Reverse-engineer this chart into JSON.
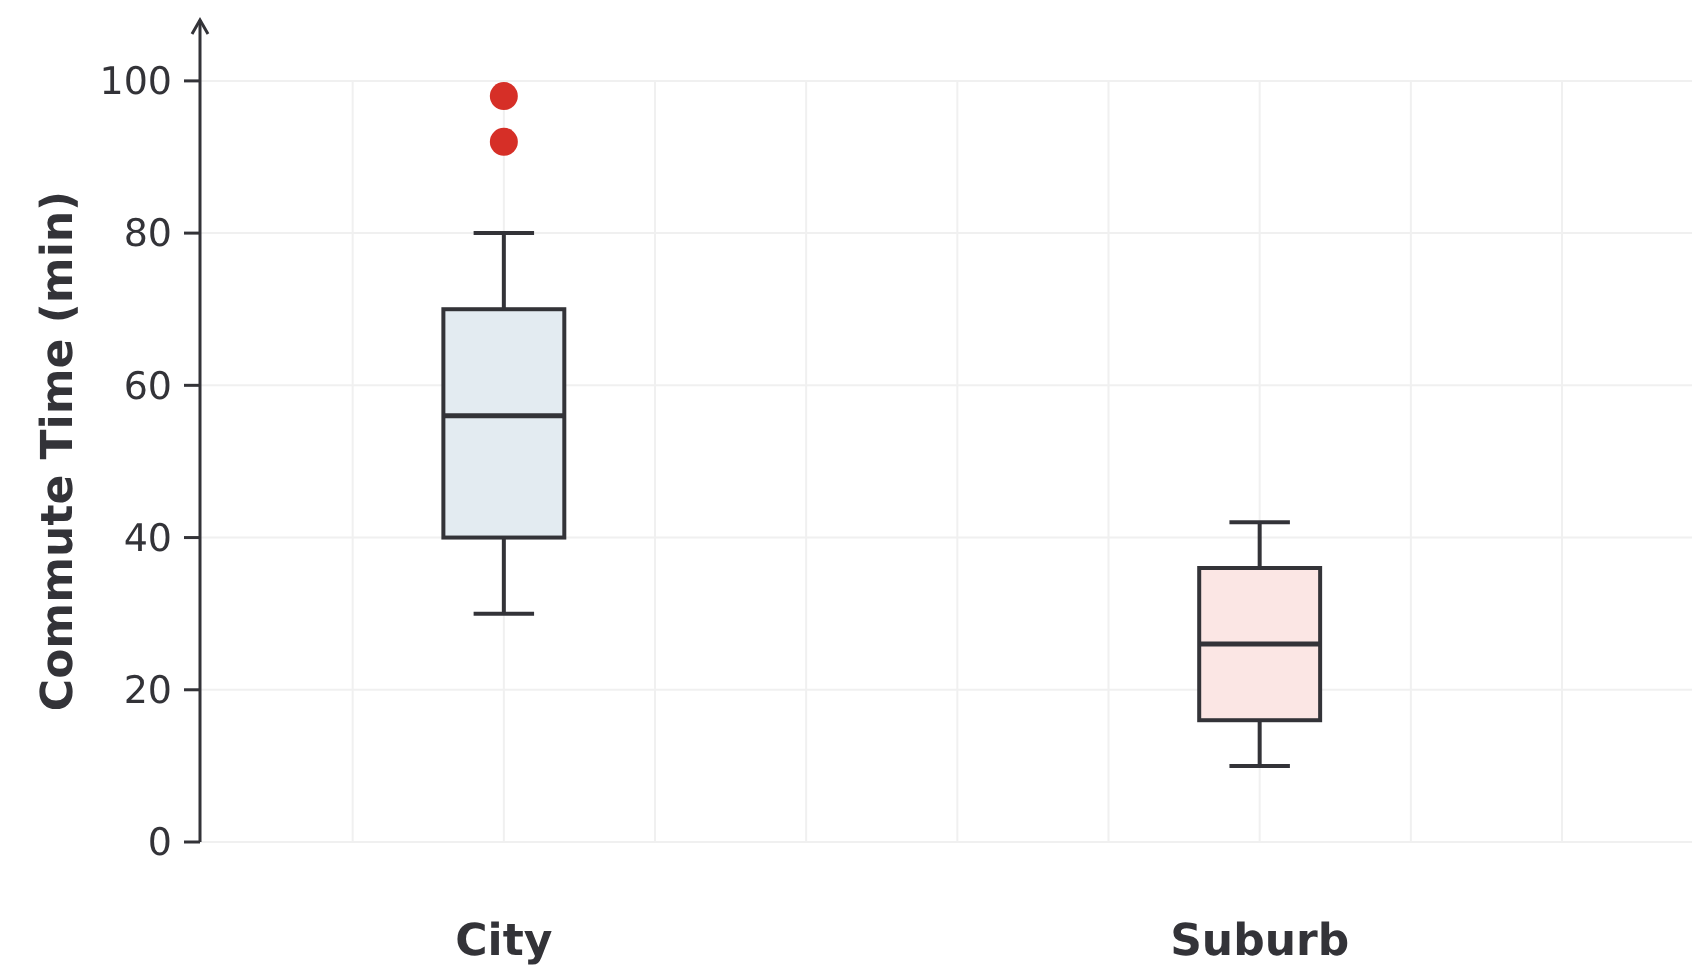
{
  "chart_data": {
    "type": "box",
    "ylabel": "Commute Time (min)",
    "categories": [
      "City",
      "Suburb"
    ],
    "ylim": [
      0,
      108
    ],
    "yticks": [
      0,
      20,
      40,
      60,
      80,
      100
    ],
    "grid": true,
    "series": [
      {
        "color": "#e3ebf1",
        "boxes": [
          {
            "low": 30,
            "q1": 40,
            "median": 56,
            "q3": 70,
            "high": 80
          },
          null
        ]
      },
      {
        "color": "#fbe6e4",
        "boxes": [
          null,
          {
            "low": 10,
            "q1": 16,
            "median": 26,
            "q3": 36,
            "high": 42
          }
        ]
      },
      {
        "type": "scatter",
        "color": "#d62f27",
        "x": [
          "City",
          "City"
        ],
        "values": [
          92,
          98
        ]
      }
    ]
  }
}
